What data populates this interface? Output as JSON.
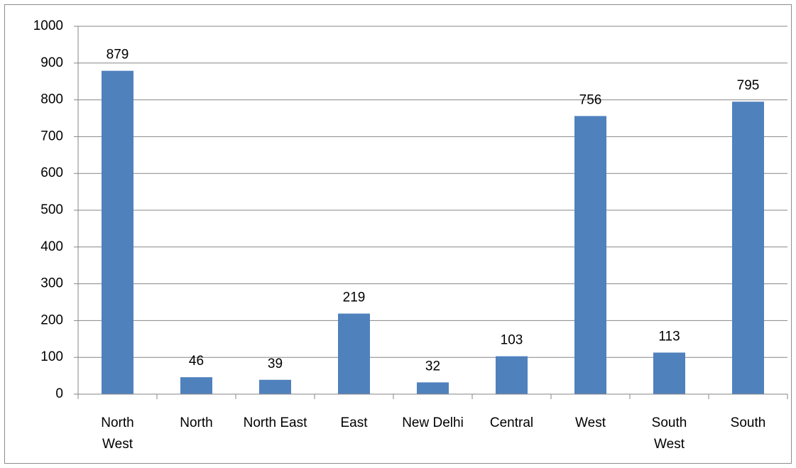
{
  "chart_data": {
    "type": "bar",
    "title": "",
    "xlabel": "",
    "ylabel": "",
    "ylim": [
      0,
      1000
    ],
    "y_ticks": [
      "0",
      "100",
      "200",
      "300",
      "400",
      "500",
      "600",
      "700",
      "800",
      "900",
      "1000"
    ],
    "grid": true,
    "legend": "none",
    "bar_color": "#4F81BD",
    "categories": [
      [
        "North",
        "West"
      ],
      [
        "North"
      ],
      [
        "North East"
      ],
      [
        "East"
      ],
      [
        "New Delhi"
      ],
      [
        "Central"
      ],
      [
        "West"
      ],
      [
        "South",
        "West"
      ],
      [
        "South"
      ]
    ],
    "values": [
      879,
      46,
      39,
      219,
      32,
      103,
      756,
      113,
      795
    ],
    "data_labels": [
      "879",
      "46",
      "39",
      "219",
      "32",
      "103",
      "756",
      "113",
      "795"
    ]
  }
}
